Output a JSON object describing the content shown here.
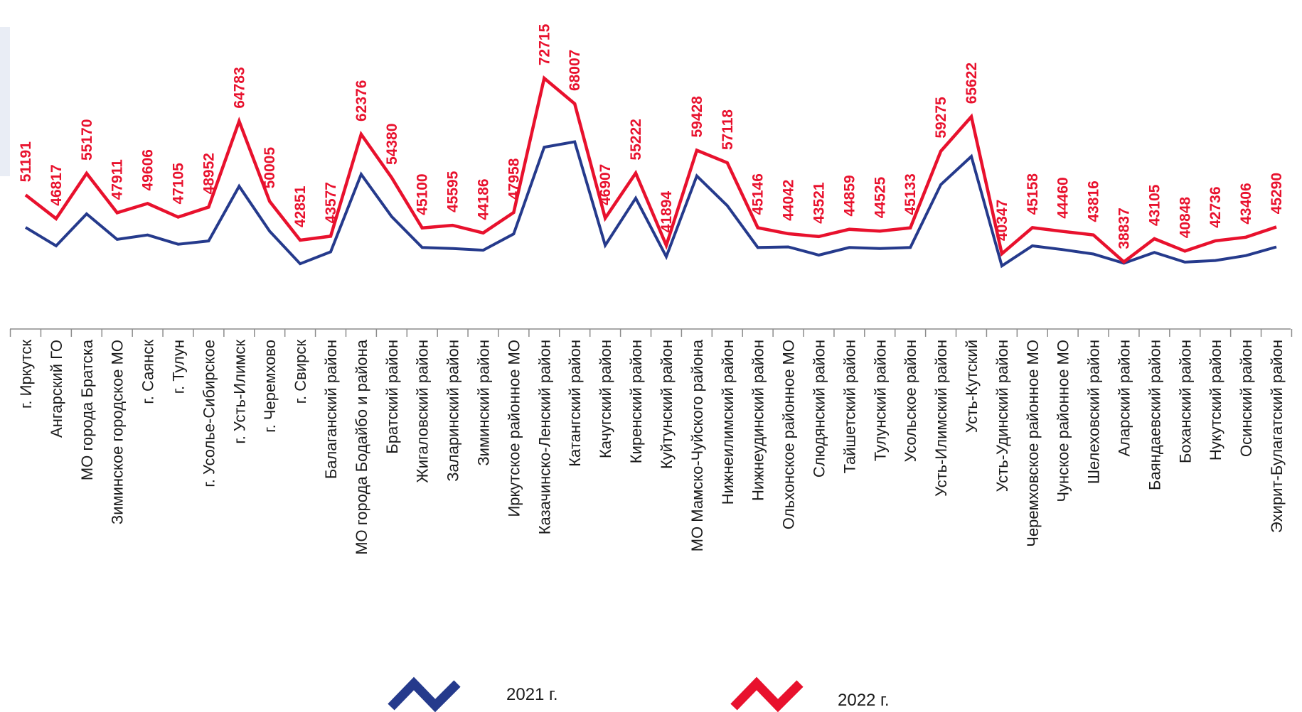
{
  "chart_data": {
    "type": "line",
    "categories": [
      "г. Иркутск",
      "Ангарский ГО",
      "МО города Братска",
      "Зиминское городское МО",
      "г. Саянск",
      "г. Тулун",
      "г. Усолье-Сибирское",
      "г. Усть-Илимск",
      "г. Черемхово",
      "г. Свирск",
      "Балаганский район",
      "МО города Бодайбо и района",
      "Братский район",
      "Жигаловский район",
      "Заларинский район",
      "Зиминский район",
      "Иркутское районное МО",
      "Казачинско-Ленский район",
      "Катангский район",
      "Качугский район",
      "Киренский район",
      "Куйтунский район",
      "МО Мамско-Чуйского района",
      "Нижнеилимский район",
      "Нижнеудинский район",
      "Ольхонское районное МО",
      "Слюдянский район",
      "Тайшетский район",
      "Тулунский район",
      "Усольское район",
      "Усть-Илимский район",
      "Усть-Кутский",
      "Усть-Удинский район",
      "Черемховское районное МО",
      "Чунское районное МО",
      "Шелеховский район",
      "Аларский район",
      "Баяндаевский район",
      "Боханский район",
      "Нукутский район",
      "Осинский район",
      "Эхирит-Булагатский район"
    ],
    "series": [
      {
        "name": "2021 г.",
        "color": "#253a8c",
        "values": [
          45200,
          41800,
          47700,
          43000,
          43800,
          42100,
          42700,
          52800,
          44500,
          38500,
          40700,
          55000,
          47200,
          41500,
          41300,
          41000,
          44000,
          60000,
          61000,
          41900,
          50600,
          39800,
          54700,
          49200,
          41500,
          41600,
          40100,
          41500,
          41300,
          41500,
          53100,
          58300,
          38100,
          41800,
          41100,
          40300,
          38600,
          40600,
          38800,
          39100,
          40000,
          41600
        ]
      },
      {
        "name": "2022 г.",
        "color": "#e8112d",
        "values": [
          51191,
          46817,
          55170,
          47911,
          49606,
          47105,
          48952,
          64783,
          50005,
          42851,
          43577,
          62376,
          54380,
          45100,
          45595,
          44186,
          47958,
          72715,
          68007,
          46907,
          55222,
          41894,
          59428,
          57118,
          45146,
          44042,
          43521,
          44859,
          44525,
          45133,
          59275,
          65622,
          40347,
          45158,
          44460,
          43816,
          38837,
          43105,
          40848,
          42736,
          43406,
          45290
        ]
      }
    ],
    "data_labels": [
      "51191",
      "46817",
      "55170",
      "47911",
      "49606",
      "47105",
      "48952",
      "64783",
      "50005",
      "42851",
      "43577",
      "62376",
      "54380",
      "45100",
      "45595",
      "44186",
      "47958",
      "72715",
      "68007",
      "46907",
      "55222",
      "41894",
      "59428",
      "57118",
      "45146",
      "44042",
      "43521",
      "44859",
      "44525",
      "45133",
      "59275",
      "65622",
      "40347",
      "45158",
      "44460",
      "43816",
      "38837",
      "43105",
      "40848",
      "42736",
      "43406",
      "45290"
    ],
    "legend": {
      "placement": "bottom",
      "entries": [
        "2021 г.",
        "2022 г."
      ]
    },
    "grid": false
  }
}
